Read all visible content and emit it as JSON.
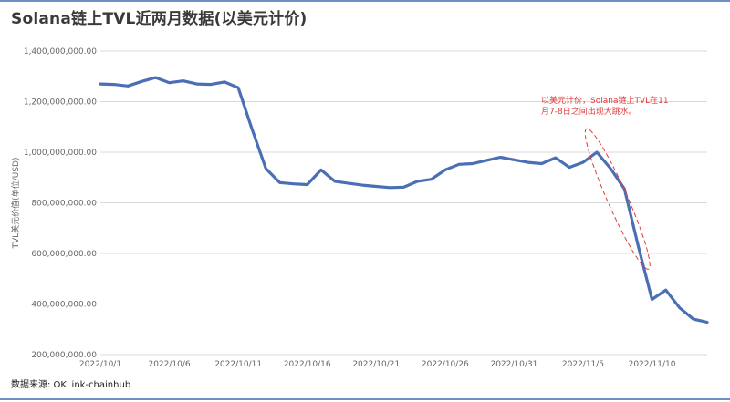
{
  "page": {
    "title": "Solana链上TVL近两月数据(以美元计价)",
    "source": "数据来源:  OKLink-chainhub"
  },
  "chart_data": {
    "type": "line",
    "title": "Solana链上TVL近两月数据(以美元计价)",
    "ylabel": "TVL美元价值(单位/USD)",
    "xlabel": "",
    "x_start": "2022/10/1",
    "ylim": [
      200000000,
      1400000000
    ],
    "y_ticks": [
      200000000,
      400000000,
      600000000,
      800000000,
      1000000000,
      1200000000,
      1400000000
    ],
    "y_tick_labels": [
      "200,000,000.00",
      "400,000,000.00",
      "600,000,000.00",
      "800,000,000.00",
      "1,000,000,000.00",
      "1,200,000,000.00",
      "1,400,000,000.00"
    ],
    "x_tick_labels": [
      "2022/10/1",
      "2022/10/6",
      "2022/10/11",
      "2022/10/16",
      "2022/10/21",
      "2022/10/26",
      "2022/10/31",
      "2022/11/5",
      "2022/11/10"
    ],
    "grid": "horizontal",
    "line_color": "#4a6fb5",
    "series": [
      {
        "name": "",
        "x": [
          "2022/10/1",
          "2022/10/2",
          "2022/10/3",
          "2022/10/4",
          "2022/10/5",
          "2022/10/6",
          "2022/10/7",
          "2022/10/8",
          "2022/10/9",
          "2022/10/10",
          "2022/10/11",
          "2022/10/12",
          "2022/10/13",
          "2022/10/14",
          "2022/10/15",
          "2022/10/16",
          "2022/10/17",
          "2022/10/18",
          "2022/10/19",
          "2022/10/20",
          "2022/10/21",
          "2022/10/22",
          "2022/10/23",
          "2022/10/24",
          "2022/10/25",
          "2022/10/26",
          "2022/10/27",
          "2022/10/28",
          "2022/10/29",
          "2022/10/30",
          "2022/10/31",
          "2022/11/1",
          "2022/11/2",
          "2022/11/3",
          "2022/11/4",
          "2022/11/5",
          "2022/11/6",
          "2022/11/7",
          "2022/11/8",
          "2022/11/9",
          "2022/11/10",
          "2022/11/11",
          "2022/11/12",
          "2022/11/13",
          "2022/11/14"
        ],
        "values": [
          1270000000,
          1268000000,
          1262000000,
          1280000000,
          1295000000,
          1275000000,
          1282000000,
          1270000000,
          1268000000,
          1278000000,
          1255000000,
          1090000000,
          935000000,
          880000000,
          875000000,
          872000000,
          930000000,
          885000000,
          877000000,
          870000000,
          865000000,
          860000000,
          862000000,
          885000000,
          893000000,
          930000000,
          952000000,
          955000000,
          968000000,
          980000000,
          970000000,
          960000000,
          955000000,
          978000000,
          940000000,
          960000000,
          1000000000,
          935000000,
          855000000,
          630000000,
          418000000,
          455000000,
          385000000,
          340000000,
          328000000
        ]
      }
    ],
    "annotation": {
      "text_lines": [
        "以美元计价，Solana链上TVL在11",
        "月7-8日之间出现大跳水。"
      ],
      "color": "#e03b3b",
      "from_x": "2022/11/6",
      "to_x": "2022/11/9"
    }
  }
}
